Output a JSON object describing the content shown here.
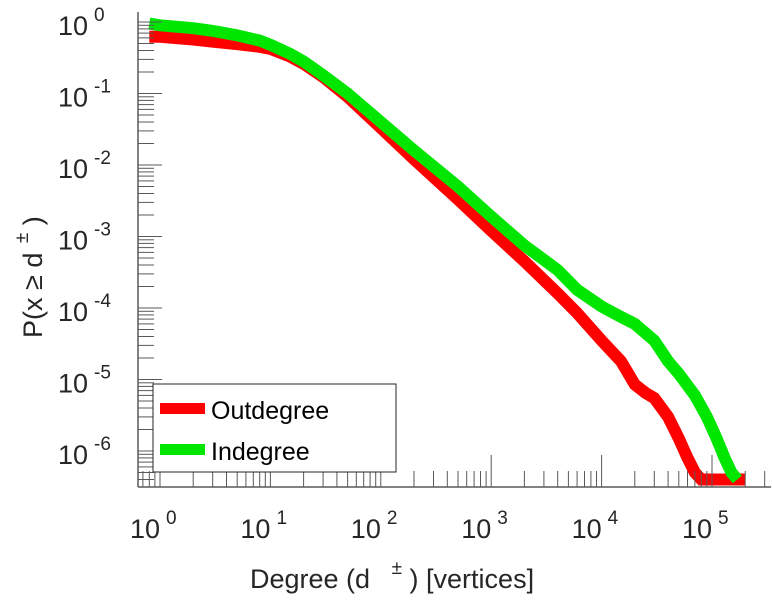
{
  "chart_data": {
    "type": "line",
    "title": "",
    "xlabel": "Degree (d  ±) [vertices]",
    "xlabel_parts": {
      "main": "Degree (d",
      "sup": "±",
      "tail": ") [vertices]"
    },
    "ylabel": "P(x ≥ d±)",
    "ylabel_parts": {
      "main": "P(x ≥ d",
      "sup": "±",
      "tail": ")"
    },
    "xscale": "log",
    "yscale": "log",
    "xlim": [
      0.8,
      400000
    ],
    "ylim": [
      4e-07,
      1.3
    ],
    "x_ticks": [
      {
        "base": "10",
        "exp": "0",
        "value": 1
      },
      {
        "base": "10",
        "exp": "1",
        "value": 10
      },
      {
        "base": "10",
        "exp": "2",
        "value": 100
      },
      {
        "base": "10",
        "exp": "3",
        "value": 1000
      },
      {
        "base": "10",
        "exp": "4",
        "value": 10000
      },
      {
        "base": "10",
        "exp": "5",
        "value": 100000
      }
    ],
    "y_ticks": [
      {
        "base": "10",
        "exp": "0",
        "value": 1
      },
      {
        "base": "10",
        "exp": "-1",
        "value": 0.1
      },
      {
        "base": "10",
        "exp": "-2",
        "value": 0.01
      },
      {
        "base": "10",
        "exp": "-3",
        "value": 0.001
      },
      {
        "base": "10",
        "exp": "-4",
        "value": 0.0001
      },
      {
        "base": "10",
        "exp": "-5",
        "value": 1e-05
      },
      {
        "base": "10",
        "exp": "-6",
        "value": 1e-06
      }
    ],
    "grid": false,
    "legend_position": "bottom-left",
    "series": [
      {
        "name": "Outdegree",
        "color": "#ff0000",
        "x": [
          0.8,
          1,
          2,
          3,
          5,
          8,
          10,
          15,
          20,
          30,
          50,
          100,
          200,
          500,
          1000,
          2000,
          4000,
          6000,
          10000,
          15000,
          20000,
          25000,
          30000,
          40000,
          50000,
          60000,
          70000,
          80000,
          100000,
          150000,
          200000
        ],
        "y": [
          0.62,
          0.62,
          0.57,
          0.53,
          0.49,
          0.45,
          0.42,
          0.33,
          0.26,
          0.17,
          0.09,
          0.033,
          0.012,
          0.0033,
          0.0012,
          0.00045,
          0.00016,
          8.5e-05,
          3.5e-05,
          1.8e-05,
          8.5e-06,
          6.5e-06,
          5.5e-06,
          3e-06,
          1.5e-06,
          8e-07,
          5e-07,
          4e-07,
          4e-07,
          4e-07,
          4e-07
        ]
      },
      {
        "name": "Indegree",
        "color": "#00e600",
        "x": [
          0.8,
          1,
          2,
          3,
          5,
          8,
          10,
          15,
          20,
          30,
          50,
          100,
          200,
          500,
          1000,
          2000,
          4000,
          6000,
          10000,
          15000,
          20000,
          30000,
          40000,
          50000,
          70000,
          90000,
          110000,
          130000,
          150000,
          170000
        ],
        "y": [
          0.95,
          0.9,
          0.82,
          0.75,
          0.65,
          0.55,
          0.48,
          0.36,
          0.28,
          0.18,
          0.1,
          0.04,
          0.016,
          0.005,
          0.0019,
          0.00075,
          0.00034,
          0.00018,
          0.000105,
          7.5e-05,
          6e-05,
          3.5e-05,
          1.8e-05,
          1.2e-05,
          6e-06,
          3e-06,
          1.5e-06,
          8e-07,
          5e-07,
          4e-07
        ]
      }
    ]
  }
}
